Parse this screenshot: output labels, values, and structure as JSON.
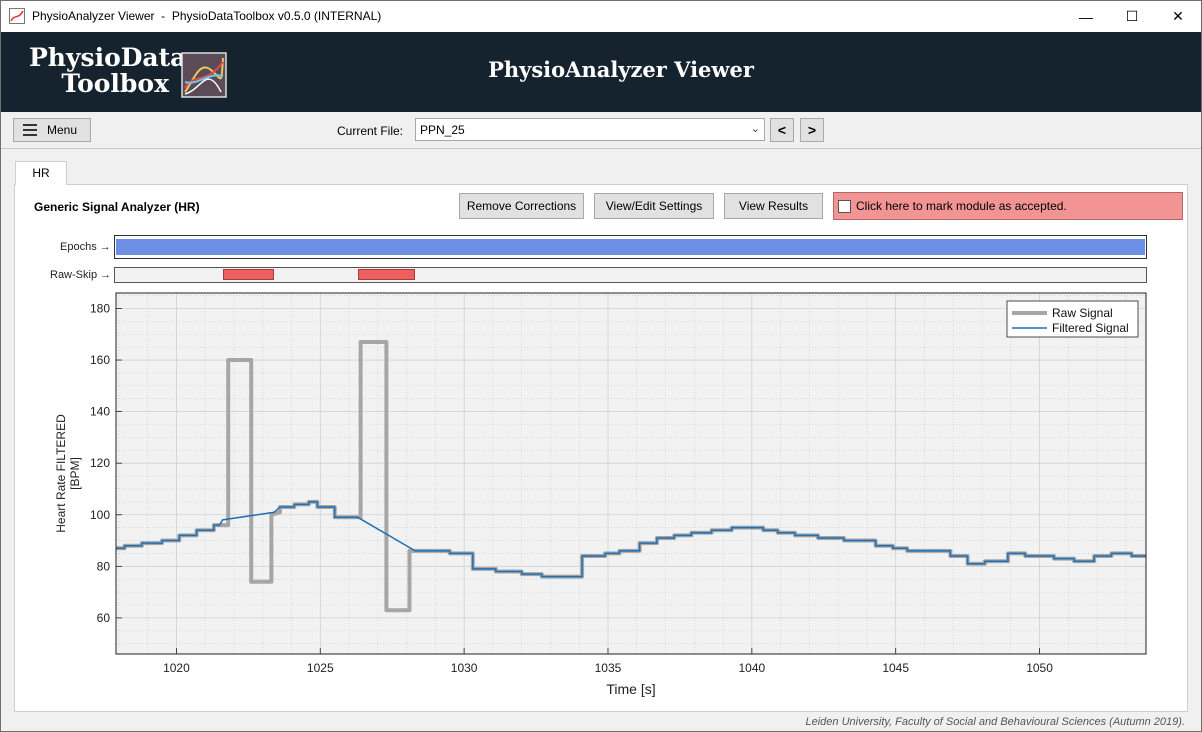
{
  "window": {
    "title": "PhysioAnalyzer Viewer  -  PhysioDataToolbox v0.5.0 (INTERNAL)",
    "minimize_glyph": "—",
    "maximize_glyph": "☐",
    "close_glyph": "✕"
  },
  "header": {
    "logo_line1": "PhysioData",
    "logo_line2": "Toolbox",
    "app_title": "PhysioAnalyzer Viewer"
  },
  "toolbar": {
    "menu_label": "Menu",
    "current_file_label": "Current File:",
    "current_file_value": "PPN_25",
    "prev_label": "<",
    "next_label": ">"
  },
  "tabs": [
    {
      "label": "HR",
      "active": true
    }
  ],
  "panel": {
    "title": "Generic Signal Analyzer (HR)",
    "buttons": {
      "remove_corrections": "Remove Corrections",
      "view_edit_settings": "View/Edit Settings",
      "view_results": "View Results"
    },
    "accept_label": "Click here to mark module as accepted.",
    "accept_color": "#f29494",
    "tracks": {
      "epochs_label": "Epochs →",
      "rawskip_label": "Raw-Skip →",
      "epochs_color": "#6e8fe6",
      "skip_color": "#ee5f5f"
    }
  },
  "chart_data": {
    "type": "line",
    "xlabel": "Time [s]",
    "ylabel_line1": "Heart Rate FILTERED",
    "ylabel_line2": "[BPM]",
    "xlim": [
      1017.9,
      1053.7
    ],
    "ylim": [
      46,
      186
    ],
    "xticks": [
      1020,
      1025,
      1030,
      1035,
      1040,
      1045,
      1050
    ],
    "yticks": [
      60,
      80,
      100,
      120,
      140,
      160,
      180
    ],
    "grid": true,
    "minor_grid": true,
    "legend": {
      "position": "top-right",
      "entries": [
        "Raw Signal",
        "Filtered Signal"
      ]
    },
    "raw_skip_segments": [
      [
        1021.6,
        1023.4
      ],
      [
        1026.3,
        1028.3
      ]
    ],
    "series": [
      {
        "name": "Raw Signal",
        "color": "#a6a6a6",
        "points": [
          [
            1017.9,
            87
          ],
          [
            1018.2,
            87
          ],
          [
            1018.2,
            88
          ],
          [
            1018.8,
            88
          ],
          [
            1018.8,
            89
          ],
          [
            1019.5,
            89
          ],
          [
            1019.5,
            90
          ],
          [
            1020.1,
            90
          ],
          [
            1020.1,
            92
          ],
          [
            1020.7,
            92
          ],
          [
            1020.7,
            94
          ],
          [
            1021.3,
            94
          ],
          [
            1021.3,
            96
          ],
          [
            1021.8,
            96
          ],
          [
            1021.8,
            98
          ],
          [
            1021.8,
            160
          ],
          [
            1022.6,
            160
          ],
          [
            1022.6,
            74
          ],
          [
            1023.3,
            74
          ],
          [
            1023.3,
            100
          ],
          [
            1023.6,
            101
          ],
          [
            1023.6,
            103
          ],
          [
            1024.1,
            103
          ],
          [
            1024.1,
            104
          ],
          [
            1024.6,
            104
          ],
          [
            1024.6,
            105
          ],
          [
            1024.9,
            105
          ],
          [
            1024.9,
            103
          ],
          [
            1025.5,
            103
          ],
          [
            1025.5,
            99
          ],
          [
            1026.4,
            99
          ],
          [
            1026.4,
            167
          ],
          [
            1027.3,
            167
          ],
          [
            1027.3,
            63
          ],
          [
            1028.1,
            63
          ],
          [
            1028.1,
            86
          ],
          [
            1028.9,
            86
          ],
          [
            1028.9,
            86
          ],
          [
            1029.5,
            86
          ],
          [
            1029.5,
            85
          ],
          [
            1030.3,
            85
          ],
          [
            1030.3,
            79
          ],
          [
            1031.1,
            79
          ],
          [
            1031.1,
            78
          ],
          [
            1032.0,
            78
          ],
          [
            1032.0,
            77
          ],
          [
            1032.7,
            77
          ],
          [
            1032.7,
            76
          ],
          [
            1033.5,
            76
          ],
          [
            1033.5,
            76
          ],
          [
            1034.1,
            76
          ],
          [
            1034.1,
            84
          ],
          [
            1034.9,
            84
          ],
          [
            1034.9,
            85
          ],
          [
            1035.4,
            85
          ],
          [
            1035.4,
            86
          ],
          [
            1036.1,
            86
          ],
          [
            1036.1,
            89
          ],
          [
            1036.7,
            89
          ],
          [
            1036.7,
            91
          ],
          [
            1037.3,
            91
          ],
          [
            1037.3,
            92
          ],
          [
            1037.9,
            92
          ],
          [
            1037.9,
            93
          ],
          [
            1038.6,
            93
          ],
          [
            1038.6,
            94
          ],
          [
            1039.3,
            94
          ],
          [
            1039.3,
            95
          ],
          [
            1040.4,
            95
          ],
          [
            1040.4,
            94
          ],
          [
            1040.9,
            94
          ],
          [
            1040.9,
            93
          ],
          [
            1041.5,
            93
          ],
          [
            1041.5,
            92
          ],
          [
            1042.3,
            92
          ],
          [
            1042.3,
            91
          ],
          [
            1043.2,
            91
          ],
          [
            1043.2,
            90
          ],
          [
            1044.3,
            90
          ],
          [
            1044.3,
            88
          ],
          [
            1044.9,
            88
          ],
          [
            1044.9,
            87
          ],
          [
            1045.4,
            87
          ],
          [
            1045.4,
            86
          ],
          [
            1046.9,
            86
          ],
          [
            1046.9,
            84
          ],
          [
            1047.5,
            84
          ],
          [
            1047.5,
            81
          ],
          [
            1048.1,
            81
          ],
          [
            1048.1,
            82
          ],
          [
            1048.9,
            82
          ],
          [
            1048.9,
            85
          ],
          [
            1049.5,
            85
          ],
          [
            1049.5,
            84
          ],
          [
            1050.5,
            84
          ],
          [
            1050.5,
            83
          ],
          [
            1051.2,
            83
          ],
          [
            1051.2,
            82
          ],
          [
            1051.9,
            82
          ],
          [
            1051.9,
            84
          ],
          [
            1052.5,
            84
          ],
          [
            1052.5,
            85
          ],
          [
            1053.2,
            85
          ],
          [
            1053.2,
            84
          ],
          [
            1053.7,
            84
          ]
        ]
      },
      {
        "name": "Filtered Signal",
        "color": "#1f6fb4",
        "points": [
          [
            1017.9,
            87
          ],
          [
            1018.2,
            87
          ],
          [
            1018.2,
            88
          ],
          [
            1018.8,
            88
          ],
          [
            1018.8,
            89
          ],
          [
            1019.5,
            89
          ],
          [
            1019.5,
            90
          ],
          [
            1020.1,
            90
          ],
          [
            1020.1,
            92
          ],
          [
            1020.7,
            92
          ],
          [
            1020.7,
            94
          ],
          [
            1021.3,
            94
          ],
          [
            1021.3,
            96
          ],
          [
            1021.5,
            96
          ],
          [
            1021.6,
            98
          ],
          [
            1023.4,
            101
          ],
          [
            1023.6,
            103
          ],
          [
            1024.1,
            103
          ],
          [
            1024.1,
            104
          ],
          [
            1024.6,
            104
          ],
          [
            1024.6,
            105
          ],
          [
            1024.9,
            105
          ],
          [
            1024.9,
            103
          ],
          [
            1025.5,
            103
          ],
          [
            1025.5,
            99
          ],
          [
            1026.3,
            99
          ],
          [
            1028.3,
            86
          ],
          [
            1028.9,
            86
          ],
          [
            1029.5,
            86
          ],
          [
            1029.5,
            85
          ],
          [
            1030.3,
            85
          ],
          [
            1030.3,
            79
          ],
          [
            1031.1,
            79
          ],
          [
            1031.1,
            78
          ],
          [
            1032.0,
            78
          ],
          [
            1032.0,
            77
          ],
          [
            1032.7,
            77
          ],
          [
            1032.7,
            76
          ],
          [
            1033.5,
            76
          ],
          [
            1033.5,
            76
          ],
          [
            1034.1,
            76
          ],
          [
            1034.1,
            84
          ],
          [
            1034.9,
            84
          ],
          [
            1034.9,
            85
          ],
          [
            1035.4,
            85
          ],
          [
            1035.4,
            86
          ],
          [
            1036.1,
            86
          ],
          [
            1036.1,
            89
          ],
          [
            1036.7,
            89
          ],
          [
            1036.7,
            91
          ],
          [
            1037.3,
            91
          ],
          [
            1037.3,
            92
          ],
          [
            1037.9,
            92
          ],
          [
            1037.9,
            93
          ],
          [
            1038.6,
            93
          ],
          [
            1038.6,
            94
          ],
          [
            1039.3,
            94
          ],
          [
            1039.3,
            95
          ],
          [
            1040.4,
            95
          ],
          [
            1040.4,
            94
          ],
          [
            1040.9,
            94
          ],
          [
            1040.9,
            93
          ],
          [
            1041.5,
            93
          ],
          [
            1041.5,
            92
          ],
          [
            1042.3,
            92
          ],
          [
            1042.3,
            91
          ],
          [
            1043.2,
            91
          ],
          [
            1043.2,
            90
          ],
          [
            1044.3,
            90
          ],
          [
            1044.3,
            88
          ],
          [
            1044.9,
            88
          ],
          [
            1044.9,
            87
          ],
          [
            1045.4,
            87
          ],
          [
            1045.4,
            86
          ],
          [
            1046.9,
            86
          ],
          [
            1046.9,
            84
          ],
          [
            1047.5,
            84
          ],
          [
            1047.5,
            81
          ],
          [
            1048.1,
            81
          ],
          [
            1048.1,
            82
          ],
          [
            1048.9,
            82
          ],
          [
            1048.9,
            85
          ],
          [
            1049.5,
            85
          ],
          [
            1049.5,
            84
          ],
          [
            1050.5,
            84
          ],
          [
            1050.5,
            83
          ],
          [
            1051.2,
            83
          ],
          [
            1051.2,
            82
          ],
          [
            1051.9,
            82
          ],
          [
            1051.9,
            84
          ],
          [
            1052.5,
            84
          ],
          [
            1052.5,
            85
          ],
          [
            1053.2,
            85
          ],
          [
            1053.2,
            84
          ],
          [
            1053.7,
            84
          ]
        ]
      }
    ]
  },
  "footer": {
    "credit": "Leiden University, Faculty of Social and Behavioural Sciences (Autumn 2019)."
  }
}
